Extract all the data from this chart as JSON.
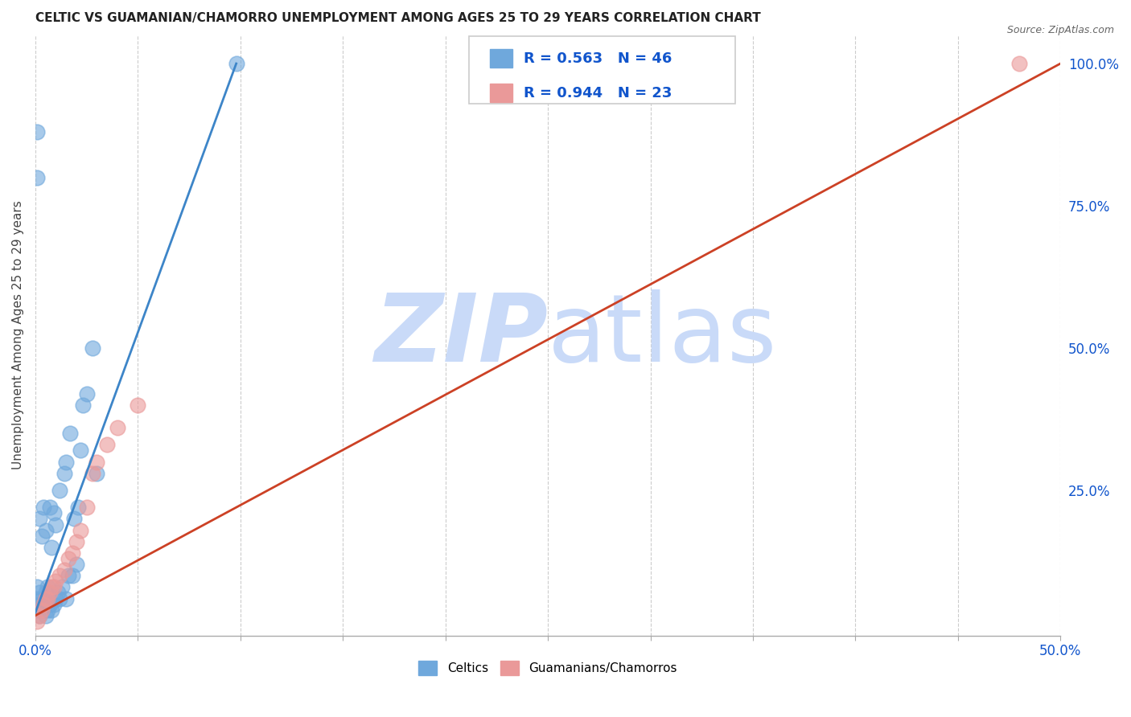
{
  "title": "CELTIC VS GUAMANIAN/CHAMORRO UNEMPLOYMENT AMONG AGES 25 TO 29 YEARS CORRELATION CHART",
  "source": "Source: ZipAtlas.com",
  "ylabel": "Unemployment Among Ages 25 to 29 years",
  "xlim": [
    0.0,
    0.5
  ],
  "ylim": [
    -0.005,
    1.05
  ],
  "xticks": [
    0.0,
    0.05,
    0.1,
    0.15,
    0.2,
    0.25,
    0.3,
    0.35,
    0.4,
    0.45,
    0.5
  ],
  "xticklabels": [
    "0.0%",
    "",
    "",
    "",
    "",
    "",
    "",
    "",
    "",
    "",
    "50.0%"
  ],
  "yticks_right": [
    0.0,
    0.25,
    0.5,
    0.75,
    1.0
  ],
  "yticklabels_right": [
    "",
    "25.0%",
    "50.0%",
    "75.0%",
    "100.0%"
  ],
  "celtic_color": "#6fa8dc",
  "celtic_line_color": "#3d85c8",
  "guam_color": "#ea9999",
  "guam_line_color": "#cc4125",
  "celtic_R": 0.563,
  "celtic_N": 46,
  "guam_R": 0.944,
  "guam_N": 23,
  "legend_color": "#1155cc",
  "watermark_zip": "ZIP",
  "watermark_atlas": "atlas",
  "watermark_color": "#c9daf8",
  "background_color": "#ffffff",
  "grid_color": "#cccccc",
  "celtic_scatter_x": [
    0.001,
    0.001,
    0.001,
    0.002,
    0.002,
    0.002,
    0.002,
    0.003,
    0.003,
    0.003,
    0.004,
    0.004,
    0.005,
    0.005,
    0.005,
    0.006,
    0.006,
    0.007,
    0.007,
    0.008,
    0.008,
    0.009,
    0.009,
    0.01,
    0.01,
    0.011,
    0.012,
    0.012,
    0.013,
    0.014,
    0.015,
    0.015,
    0.016,
    0.017,
    0.018,
    0.019,
    0.02,
    0.021,
    0.022,
    0.023,
    0.025,
    0.028,
    0.03,
    0.001,
    0.001,
    0.098
  ],
  "celtic_scatter_y": [
    0.04,
    0.06,
    0.08,
    0.03,
    0.05,
    0.07,
    0.2,
    0.04,
    0.06,
    0.17,
    0.05,
    0.22,
    0.03,
    0.07,
    0.18,
    0.04,
    0.08,
    0.05,
    0.22,
    0.04,
    0.15,
    0.05,
    0.21,
    0.06,
    0.19,
    0.07,
    0.06,
    0.25,
    0.08,
    0.28,
    0.06,
    0.3,
    0.1,
    0.35,
    0.1,
    0.2,
    0.12,
    0.22,
    0.32,
    0.4,
    0.42,
    0.5,
    0.28,
    0.88,
    0.8,
    1.0
  ],
  "guam_scatter_x": [
    0.001,
    0.002,
    0.003,
    0.004,
    0.005,
    0.006,
    0.007,
    0.008,
    0.009,
    0.01,
    0.012,
    0.014,
    0.016,
    0.018,
    0.02,
    0.022,
    0.025,
    0.028,
    0.03,
    0.035,
    0.04,
    0.05,
    0.48
  ],
  "guam_scatter_y": [
    0.02,
    0.03,
    0.04,
    0.05,
    0.06,
    0.06,
    0.07,
    0.08,
    0.08,
    0.09,
    0.1,
    0.11,
    0.13,
    0.14,
    0.16,
    0.18,
    0.22,
    0.28,
    0.3,
    0.33,
    0.36,
    0.4,
    1.0
  ],
  "celtic_line_x": [
    0.0,
    0.098
  ],
  "celtic_line_y": [
    0.035,
    1.0
  ],
  "guam_line_x": [
    0.0,
    0.5
  ],
  "guam_line_y": [
    0.03,
    1.0
  ]
}
